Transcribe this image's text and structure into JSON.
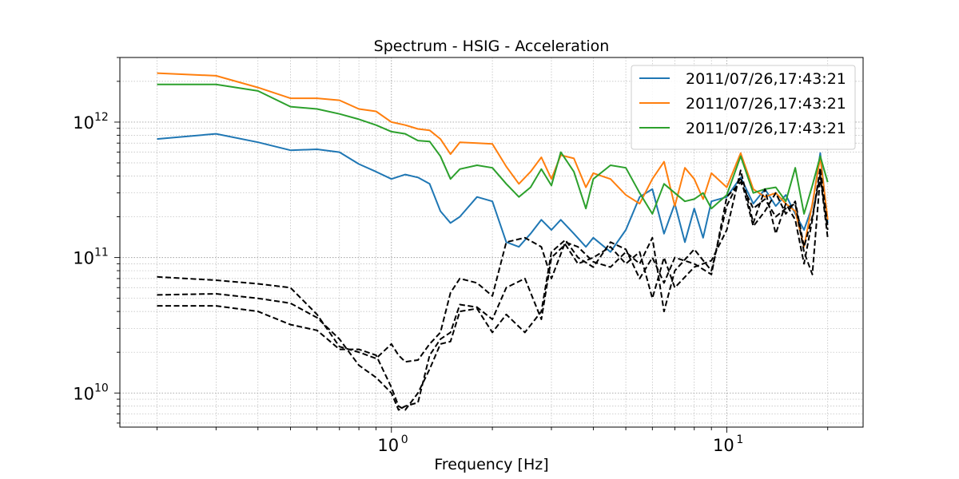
{
  "chart_data": {
    "type": "line",
    "title": "Spectrum - HSIG - Acceleration",
    "xlabel": "Frequency [Hz]",
    "ylabel": "",
    "xscale": "log",
    "yscale": "log",
    "xlim": [
      0.155,
      25.5
    ],
    "ylim": [
      5600000000.0,
      3000000000000.0
    ],
    "grid": "major and minor, dotted",
    "legend_position": "top-right",
    "x_ticks": [
      {
        "value": 1,
        "base": "10",
        "exp": "0"
      },
      {
        "value": 10,
        "base": "10",
        "exp": "1"
      }
    ],
    "y_ticks": [
      {
        "value": 10000000000.0,
        "base": "10",
        "exp": "10"
      },
      {
        "value": 100000000000.0,
        "base": "10",
        "exp": "11"
      },
      {
        "value": 1000000000000.0,
        "base": "10",
        "exp": "12"
      }
    ],
    "series": [
      {
        "name": "2011/07/26,17:43:21",
        "color": "#1f77b4",
        "style": "solid",
        "x": [
          0.2,
          0.3,
          0.4,
          0.5,
          0.6,
          0.7,
          0.8,
          0.9,
          1.0,
          1.1,
          1.2,
          1.3,
          1.4,
          1.5,
          1.6,
          1.8,
          2.0,
          2.2,
          2.4,
          2.6,
          2.8,
          3.0,
          3.2,
          3.5,
          3.8,
          4.0,
          4.5,
          5.0,
          5.5,
          6.0,
          6.5,
          7.0,
          7.5,
          8.0,
          8.5,
          9.0,
          10,
          11,
          12,
          13,
          14,
          15,
          16,
          17,
          18,
          19,
          20
        ],
        "y": [
          750000000000.0,
          820000000000.0,
          710000000000.0,
          620000000000.0,
          630000000000.0,
          600000000000.0,
          490000000000.0,
          430000000000.0,
          380000000000.0,
          410000000000.0,
          390000000000.0,
          350000000000.0,
          220000000000.0,
          180000000000.0,
          200000000000.0,
          280000000000.0,
          260000000000.0,
          130000000000.0,
          120000000000.0,
          150000000000.0,
          190000000000.0,
          160000000000.0,
          190000000000.0,
          150000000000.0,
          120000000000.0,
          140000000000.0,
          110000000000.0,
          160000000000.0,
          280000000000.0,
          320000000000.0,
          150000000000.0,
          250000000000.0,
          130000000000.0,
          230000000000.0,
          140000000000.0,
          260000000000.0,
          280000000000.0,
          390000000000.0,
          250000000000.0,
          320000000000.0,
          240000000000.0,
          290000000000.0,
          210000000000.0,
          160000000000.0,
          240000000000.0,
          590000000000.0,
          180000000000.0
        ]
      },
      {
        "name": "2011/07/26,17:43:21",
        "color": "#ff7f0e",
        "style": "solid",
        "x": [
          0.2,
          0.3,
          0.4,
          0.5,
          0.6,
          0.7,
          0.8,
          0.9,
          1.0,
          1.1,
          1.2,
          1.3,
          1.4,
          1.5,
          1.6,
          1.8,
          2.0,
          2.2,
          2.4,
          2.6,
          2.8,
          3.0,
          3.2,
          3.5,
          3.8,
          4.0,
          4.5,
          5.0,
          5.5,
          6.0,
          6.5,
          7.0,
          7.5,
          8.0,
          8.5,
          9.0,
          10,
          11,
          12,
          13,
          14,
          15,
          16,
          17,
          18,
          19,
          20
        ],
        "y": [
          2300000000000.0,
          2200000000000.0,
          1800000000000.0,
          1500000000000.0,
          1500000000000.0,
          1450000000000.0,
          1250000000000.0,
          1200000000000.0,
          1000000000000.0,
          950000000000.0,
          890000000000.0,
          870000000000.0,
          750000000000.0,
          580000000000.0,
          710000000000.0,
          700000000000.0,
          690000000000.0,
          470000000000.0,
          350000000000.0,
          430000000000.0,
          550000000000.0,
          380000000000.0,
          570000000000.0,
          540000000000.0,
          330000000000.0,
          420000000000.0,
          380000000000.0,
          290000000000.0,
          250000000000.0,
          380000000000.0,
          510000000000.0,
          240000000000.0,
          460000000000.0,
          380000000000.0,
          270000000000.0,
          420000000000.0,
          330000000000.0,
          590000000000.0,
          320000000000.0,
          280000000000.0,
          300000000000.0,
          250000000000.0,
          220000000000.0,
          120000000000.0,
          250000000000.0,
          550000000000.0,
          190000000000.0
        ]
      },
      {
        "name": "2011/07/26,17:43:21",
        "color": "#2ca02c",
        "style": "solid",
        "x": [
          0.2,
          0.3,
          0.4,
          0.5,
          0.6,
          0.7,
          0.8,
          0.9,
          1.0,
          1.1,
          1.2,
          1.3,
          1.4,
          1.5,
          1.6,
          1.8,
          2.0,
          2.2,
          2.4,
          2.6,
          2.8,
          3.0,
          3.2,
          3.5,
          3.8,
          4.0,
          4.5,
          5.0,
          5.5,
          6.0,
          6.5,
          7.0,
          7.5,
          8.0,
          8.5,
          9.0,
          10,
          11,
          12,
          13,
          14,
          15,
          16,
          17,
          18,
          19,
          20
        ],
        "y": [
          1900000000000.0,
          1900000000000.0,
          1700000000000.0,
          1300000000000.0,
          1250000000000.0,
          1150000000000.0,
          1050000000000.0,
          950000000000.0,
          850000000000.0,
          820000000000.0,
          730000000000.0,
          720000000000.0,
          560000000000.0,
          380000000000.0,
          450000000000.0,
          480000000000.0,
          460000000000.0,
          350000000000.0,
          280000000000.0,
          330000000000.0,
          450000000000.0,
          340000000000.0,
          600000000000.0,
          430000000000.0,
          230000000000.0,
          380000000000.0,
          480000000000.0,
          460000000000.0,
          300000000000.0,
          210000000000.0,
          350000000000.0,
          300000000000.0,
          260000000000.0,
          270000000000.0,
          300000000000.0,
          230000000000.0,
          290000000000.0,
          560000000000.0,
          300000000000.0,
          320000000000.0,
          330000000000.0,
          260000000000.0,
          460000000000.0,
          210000000000.0,
          340000000000.0,
          560000000000.0,
          360000000000.0
        ]
      },
      {
        "name": "",
        "color": "#000000",
        "style": "dashed",
        "x": [
          0.2,
          0.3,
          0.4,
          0.5,
          0.6,
          0.7,
          0.8,
          0.9,
          1.0,
          1.05,
          1.1,
          1.2,
          1.3,
          1.4,
          1.5,
          1.6,
          1.8,
          2.0,
          2.2,
          2.5,
          2.8,
          3.0,
          3.3,
          3.6,
          4.0,
          4.5,
          5.0,
          5.5,
          6.0,
          6.5,
          7.0,
          8.0,
          9.0,
          10,
          11,
          12,
          13,
          14,
          15,
          16,
          17,
          18,
          19,
          20
        ],
        "y": [
          72000000000.0,
          68000000000.0,
          64000000000.0,
          60000000000.0,
          38000000000.0,
          22000000000.0,
          20000000000.0,
          18000000000.0,
          23000000000.0,
          19000000000.0,
          17000000000.0,
          17500000000.0,
          23000000000.0,
          28000000000.0,
          55000000000.0,
          70000000000.0,
          65000000000.0,
          52000000000.0,
          130000000000.0,
          140000000000.0,
          120000000000.0,
          70000000000.0,
          130000000000.0,
          120000000000.0,
          93000000000.0,
          85000000000.0,
          110000000000.0,
          90000000000.0,
          140000000000.0,
          40000000000.0,
          80000000000.0,
          115000000000.0,
          80000000000.0,
          240000000000.0,
          390000000000.0,
          170000000000.0,
          220000000000.0,
          300000000000.0,
          210000000000.0,
          260000000000.0,
          120000000000.0,
          200000000000.0,
          410000000000.0,
          160000000000.0
        ]
      },
      {
        "name": "",
        "color": "#000000",
        "style": "dashed",
        "x": [
          0.2,
          0.3,
          0.4,
          0.5,
          0.6,
          0.7,
          0.8,
          0.9,
          1.0,
          1.05,
          1.1,
          1.2,
          1.3,
          1.4,
          1.5,
          1.6,
          1.8,
          2.0,
          2.2,
          2.5,
          2.8,
          3.0,
          3.3,
          3.6,
          4.0,
          4.5,
          5.0,
          5.5,
          6.0,
          6.5,
          7.0,
          8.0,
          9.0,
          10,
          11,
          12,
          13,
          14,
          15,
          16,
          17,
          18,
          19,
          20
        ],
        "y": [
          53000000000.0,
          54000000000.0,
          50000000000.0,
          46000000000.0,
          36000000000.0,
          25000000000.0,
          16000000000.0,
          13000000000.0,
          10000000000.0,
          7500000000.0,
          8000000000.0,
          8500000000.0,
          19000000000.0,
          25000000000.0,
          28000000000.0,
          45000000000.0,
          43000000000.0,
          35000000000.0,
          60000000000.0,
          70000000000.0,
          35000000000.0,
          100000000000.0,
          125000000000.0,
          90000000000.0,
          100000000000.0,
          120000000000.0,
          90000000000.0,
          110000000000.0,
          50000000000.0,
          100000000000.0,
          60000000000.0,
          85000000000.0,
          95000000000.0,
          160000000000.0,
          440000000000.0,
          180000000000.0,
          320000000000.0,
          150000000000.0,
          250000000000.0,
          190000000000.0,
          90000000000.0,
          190000000000.0,
          460000000000.0,
          170000000000.0
        ]
      },
      {
        "name": "",
        "color": "#000000",
        "style": "dashed",
        "x": [
          0.2,
          0.3,
          0.4,
          0.5,
          0.6,
          0.7,
          0.8,
          0.9,
          1.0,
          1.05,
          1.1,
          1.2,
          1.3,
          1.4,
          1.5,
          1.6,
          1.8,
          2.0,
          2.2,
          2.5,
          2.8,
          3.0,
          3.3,
          3.6,
          4.0,
          4.5,
          5.0,
          5.5,
          6.0,
          6.5,
          7.0,
          8.0,
          9.0,
          10,
          11,
          12,
          13,
          14,
          15,
          16,
          17,
          18,
          19,
          20
        ],
        "y": [
          44000000000.0,
          44000000000.0,
          40000000000.0,
          32000000000.0,
          29000000000.0,
          21000000000.0,
          21000000000.0,
          19000000000.0,
          11000000000.0,
          8000000000.0,
          7500000000.0,
          10000000000.0,
          15000000000.0,
          23000000000.0,
          24000000000.0,
          40000000000.0,
          42000000000.0,
          28000000000.0,
          38000000000.0,
          28000000000.0,
          40000000000.0,
          110000000000.0,
          135000000000.0,
          100000000000.0,
          85000000000.0,
          130000000000.0,
          115000000000.0,
          70000000000.0,
          100000000000.0,
          65000000000.0,
          100000000000.0,
          90000000000.0,
          75000000000.0,
          280000000000.0,
          360000000000.0,
          230000000000.0,
          270000000000.0,
          200000000000.0,
          230000000000.0,
          250000000000.0,
          110000000000.0,
          75000000000.0,
          400000000000.0,
          140000000000.0
        ]
      }
    ]
  }
}
